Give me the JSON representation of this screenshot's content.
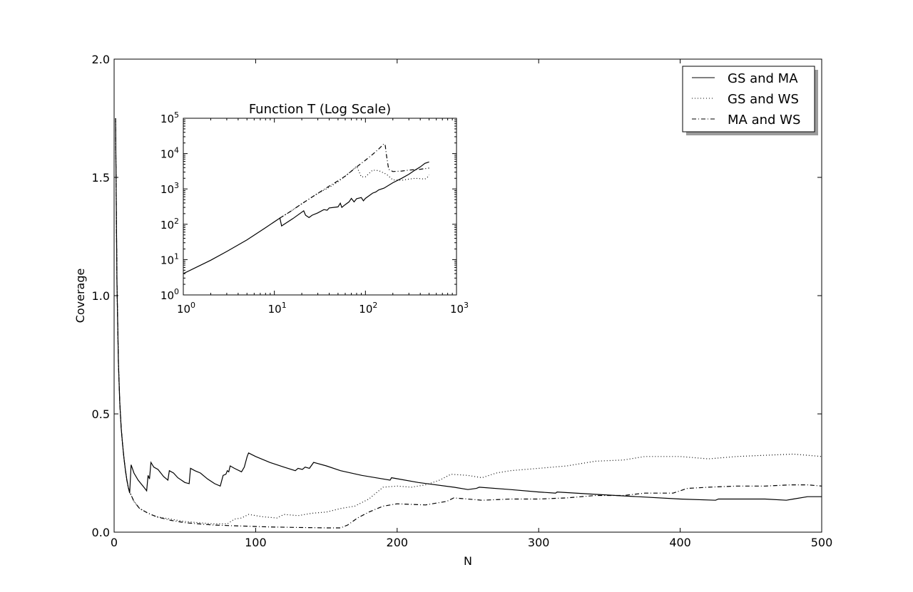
{
  "chart_data": [
    {
      "type": "line",
      "xlabel": "N",
      "ylabel": "Coverage",
      "xlim": [
        0,
        500
      ],
      "ylim": [
        0,
        2.0
      ],
      "xticks": [
        "0",
        "100",
        "200",
        "300",
        "400",
        "500"
      ],
      "yticks": [
        "0.0",
        "0.5",
        "1.0",
        "1.5",
        "2.0"
      ],
      "legend_position": "top-right",
      "grid": false,
      "series": [
        {
          "name": "GS and MA",
          "style": "solid",
          "points": [
            [
              1,
              1.75
            ],
            [
              2,
              1.05
            ],
            [
              3,
              0.72
            ],
            [
              4,
              0.55
            ],
            [
              5,
              0.44
            ],
            [
              6,
              0.37
            ],
            [
              7,
              0.31
            ],
            [
              8,
              0.26
            ],
            [
              9,
              0.22
            ],
            [
              10,
              0.19
            ],
            [
              11,
              0.165
            ],
            [
              12,
              0.285
            ],
            [
              14,
              0.25
            ],
            [
              17,
              0.22
            ],
            [
              21,
              0.19
            ],
            [
              23,
              0.175
            ],
            [
              24,
              0.24
            ],
            [
              25,
              0.225
            ],
            [
              26,
              0.295
            ],
            [
              28,
              0.275
            ],
            [
              31,
              0.265
            ],
            [
              35,
              0.235
            ],
            [
              38,
              0.22
            ],
            [
              39,
              0.26
            ],
            [
              42,
              0.25
            ],
            [
              45,
              0.23
            ],
            [
              50,
              0.21
            ],
            [
              53,
              0.205
            ],
            [
              54,
              0.27
            ],
            [
              57,
              0.26
            ],
            [
              61,
              0.25
            ],
            [
              66,
              0.225
            ],
            [
              71,
              0.205
            ],
            [
              75,
              0.195
            ],
            [
              77,
              0.24
            ],
            [
              79,
              0.245
            ],
            [
              80,
              0.26
            ],
            [
              81,
              0.255
            ],
            [
              82,
              0.28
            ],
            [
              85,
              0.27
            ],
            [
              90,
              0.255
            ],
            [
              92,
              0.275
            ],
            [
              94,
              0.32
            ],
            [
              95,
              0.335
            ],
            [
              100,
              0.32
            ],
            [
              110,
              0.295
            ],
            [
              120,
              0.275
            ],
            [
              128,
              0.26
            ],
            [
              130,
              0.27
            ],
            [
              133,
              0.265
            ],
            [
              135,
              0.275
            ],
            [
              138,
              0.27
            ],
            [
              141,
              0.295
            ],
            [
              150,
              0.28
            ],
            [
              160,
              0.26
            ],
            [
              175,
              0.24
            ],
            [
              195,
              0.22
            ],
            [
              196,
              0.23
            ],
            [
              215,
              0.21
            ],
            [
              240,
              0.19
            ],
            [
              250,
              0.18
            ],
            [
              256,
              0.185
            ],
            [
              258,
              0.19
            ],
            [
              280,
              0.18
            ],
            [
              300,
              0.17
            ],
            [
              312,
              0.165
            ],
            [
              313,
              0.17
            ],
            [
              340,
              0.16
            ],
            [
              370,
              0.15
            ],
            [
              400,
              0.14
            ],
            [
              425,
              0.135
            ],
            [
              427,
              0.14
            ],
            [
              460,
              0.14
            ],
            [
              475,
              0.135
            ],
            [
              480,
              0.14
            ],
            [
              490,
              0.15
            ],
            [
              500,
              0.15
            ]
          ]
        },
        {
          "name": "GS and WS",
          "style": "dotted",
          "points": [
            [
              1,
              1.75
            ],
            [
              2,
              1.05
            ],
            [
              3,
              0.72
            ],
            [
              4,
              0.55
            ],
            [
              5,
              0.44
            ],
            [
              6,
              0.37
            ],
            [
              7,
              0.31
            ],
            [
              8,
              0.26
            ],
            [
              9,
              0.22
            ],
            [
              10,
              0.19
            ],
            [
              11,
              0.17
            ],
            [
              14,
              0.13
            ],
            [
              18,
              0.1
            ],
            [
              24,
              0.08
            ],
            [
              30,
              0.065
            ],
            [
              40,
              0.055
            ],
            [
              50,
              0.045
            ],
            [
              60,
              0.04
            ],
            [
              70,
              0.035
            ],
            [
              80,
              0.035
            ],
            [
              85,
              0.055
            ],
            [
              90,
              0.06
            ],
            [
              95,
              0.075
            ],
            [
              105,
              0.065
            ],
            [
              115,
              0.06
            ],
            [
              120,
              0.075
            ],
            [
              130,
              0.07
            ],
            [
              135,
              0.075
            ],
            [
              140,
              0.08
            ],
            [
              150,
              0.085
            ],
            [
              160,
              0.1
            ],
            [
              170,
              0.11
            ],
            [
              180,
              0.14
            ],
            [
              190,
              0.19
            ],
            [
              200,
              0.195
            ],
            [
              210,
              0.19
            ],
            [
              220,
              0.2
            ],
            [
              230,
              0.22
            ],
            [
              238,
              0.245
            ],
            [
              250,
              0.24
            ],
            [
              260,
              0.23
            ],
            [
              270,
              0.25
            ],
            [
              280,
              0.26
            ],
            [
              300,
              0.27
            ],
            [
              320,
              0.28
            ],
            [
              340,
              0.3
            ],
            [
              360,
              0.305
            ],
            [
              375,
              0.32
            ],
            [
              400,
              0.32
            ],
            [
              420,
              0.31
            ],
            [
              440,
              0.32
            ],
            [
              460,
              0.325
            ],
            [
              480,
              0.33
            ],
            [
              500,
              0.32
            ]
          ]
        },
        {
          "name": "MA and WS",
          "style": "dashdot",
          "points": [
            [
              1,
              1.75
            ],
            [
              2,
              1.05
            ],
            [
              3,
              0.72
            ],
            [
              4,
              0.55
            ],
            [
              5,
              0.44
            ],
            [
              6,
              0.37
            ],
            [
              7,
              0.31
            ],
            [
              8,
              0.26
            ],
            [
              9,
              0.22
            ],
            [
              10,
              0.19
            ],
            [
              11,
              0.17
            ],
            [
              14,
              0.13
            ],
            [
              18,
              0.1
            ],
            [
              24,
              0.08
            ],
            [
              30,
              0.065
            ],
            [
              40,
              0.05
            ],
            [
              50,
              0.04
            ],
            [
              60,
              0.035
            ],
            [
              70,
              0.03
            ],
            [
              80,
              0.028
            ],
            [
              95,
              0.025
            ],
            [
              110,
              0.022
            ],
            [
              130,
              0.02
            ],
            [
              150,
              0.018
            ],
            [
              160,
              0.018
            ],
            [
              165,
              0.03
            ],
            [
              172,
              0.06
            ],
            [
              180,
              0.085
            ],
            [
              190,
              0.11
            ],
            [
              200,
              0.12
            ],
            [
              220,
              0.115
            ],
            [
              235,
              0.13
            ],
            [
              240,
              0.145
            ],
            [
              250,
              0.14
            ],
            [
              260,
              0.135
            ],
            [
              280,
              0.14
            ],
            [
              300,
              0.14
            ],
            [
              320,
              0.145
            ],
            [
              340,
              0.155
            ],
            [
              360,
              0.155
            ],
            [
              375,
              0.165
            ],
            [
              395,
              0.165
            ],
            [
              405,
              0.185
            ],
            [
              420,
              0.19
            ],
            [
              440,
              0.195
            ],
            [
              460,
              0.195
            ],
            [
              478,
              0.2
            ],
            [
              490,
              0.2
            ],
            [
              500,
              0.195
            ]
          ]
        }
      ]
    },
    {
      "type": "line",
      "title": "Function T (Log Scale)",
      "scale": "log-log",
      "xlim": [
        1,
        1000
      ],
      "ylim": [
        1,
        100000
      ],
      "xticks": [
        {
          "base": "10",
          "exp": "0"
        },
        {
          "base": "10",
          "exp": "1"
        },
        {
          "base": "10",
          "exp": "2"
        },
        {
          "base": "10",
          "exp": "3"
        }
      ],
      "yticks": [
        {
          "base": "10",
          "exp": "0"
        },
        {
          "base": "10",
          "exp": "1"
        },
        {
          "base": "10",
          "exp": "2"
        },
        {
          "base": "10",
          "exp": "3"
        },
        {
          "base": "10",
          "exp": "4"
        },
        {
          "base": "10",
          "exp": "5"
        }
      ],
      "series": [
        {
          "name": "GS and MA",
          "style": "solid",
          "points": [
            [
              1,
              4
            ],
            [
              2,
              9.6
            ],
            [
              3,
              17
            ],
            [
              5,
              36
            ],
            [
              8,
              80
            ],
            [
              11.5,
              150
            ],
            [
              12,
              90
            ],
            [
              16,
              145
            ],
            [
              21,
              240
            ],
            [
              22,
              180
            ],
            [
              24,
              155
            ],
            [
              26,
              180
            ],
            [
              30,
              210
            ],
            [
              35,
              260
            ],
            [
              38,
              250
            ],
            [
              40,
              290
            ],
            [
              50,
              310
            ],
            [
              53,
              395
            ],
            [
              55,
              300
            ],
            [
              60,
              360
            ],
            [
              66,
              430
            ],
            [
              70,
              540
            ],
            [
              75,
              430
            ],
            [
              80,
              530
            ],
            [
              90,
              570
            ],
            [
              95,
              460
            ],
            [
              100,
              540
            ],
            [
              120,
              760
            ],
            [
              130,
              820
            ],
            [
              140,
              940
            ],
            [
              160,
              1050
            ],
            [
              200,
              1500
            ],
            [
              250,
              2000
            ],
            [
              300,
              2600
            ],
            [
              350,
              3400
            ],
            [
              400,
              4200
            ],
            [
              450,
              5300
            ],
            [
              500,
              5800
            ]
          ]
        },
        {
          "name": "GS and WS",
          "style": "dotted",
          "points": [
            [
              11.5,
              150
            ],
            [
              15,
              230
            ],
            [
              20,
              380
            ],
            [
              30,
              750
            ],
            [
              40,
              1100
            ],
            [
              50,
              1600
            ],
            [
              60,
              2300
            ],
            [
              70,
              3200
            ],
            [
              80,
              4400
            ],
            [
              90,
              2200
            ],
            [
              100,
              2200
            ],
            [
              120,
              3400
            ],
            [
              140,
              3300
            ],
            [
              160,
              2800
            ],
            [
              170,
              2600
            ],
            [
              180,
              2300
            ],
            [
              200,
              1800
            ],
            [
              250,
              1750
            ],
            [
              300,
              1900
            ],
            [
              350,
              2000
            ],
            [
              400,
              1950
            ],
            [
              450,
              1900
            ],
            [
              480,
              2150
            ],
            [
              500,
              2500
            ]
          ]
        },
        {
          "name": "MA and WS",
          "style": "dashdot",
          "points": [
            [
              11.5,
              150
            ],
            [
              15,
              230
            ],
            [
              20,
              380
            ],
            [
              30,
              750
            ],
            [
              40,
              1200
            ],
            [
              50,
              1700
            ],
            [
              60,
              2300
            ],
            [
              80,
              4200
            ],
            [
              100,
              6500
            ],
            [
              120,
              9500
            ],
            [
              140,
              13500
            ],
            [
              160,
              19000
            ],
            [
              165,
              17000
            ],
            [
              170,
              9000
            ],
            [
              180,
              3600
            ],
            [
              200,
              3100
            ],
            [
              250,
              3200
            ],
            [
              300,
              3400
            ],
            [
              400,
              3600
            ],
            [
              500,
              3900
            ]
          ]
        }
      ]
    }
  ]
}
